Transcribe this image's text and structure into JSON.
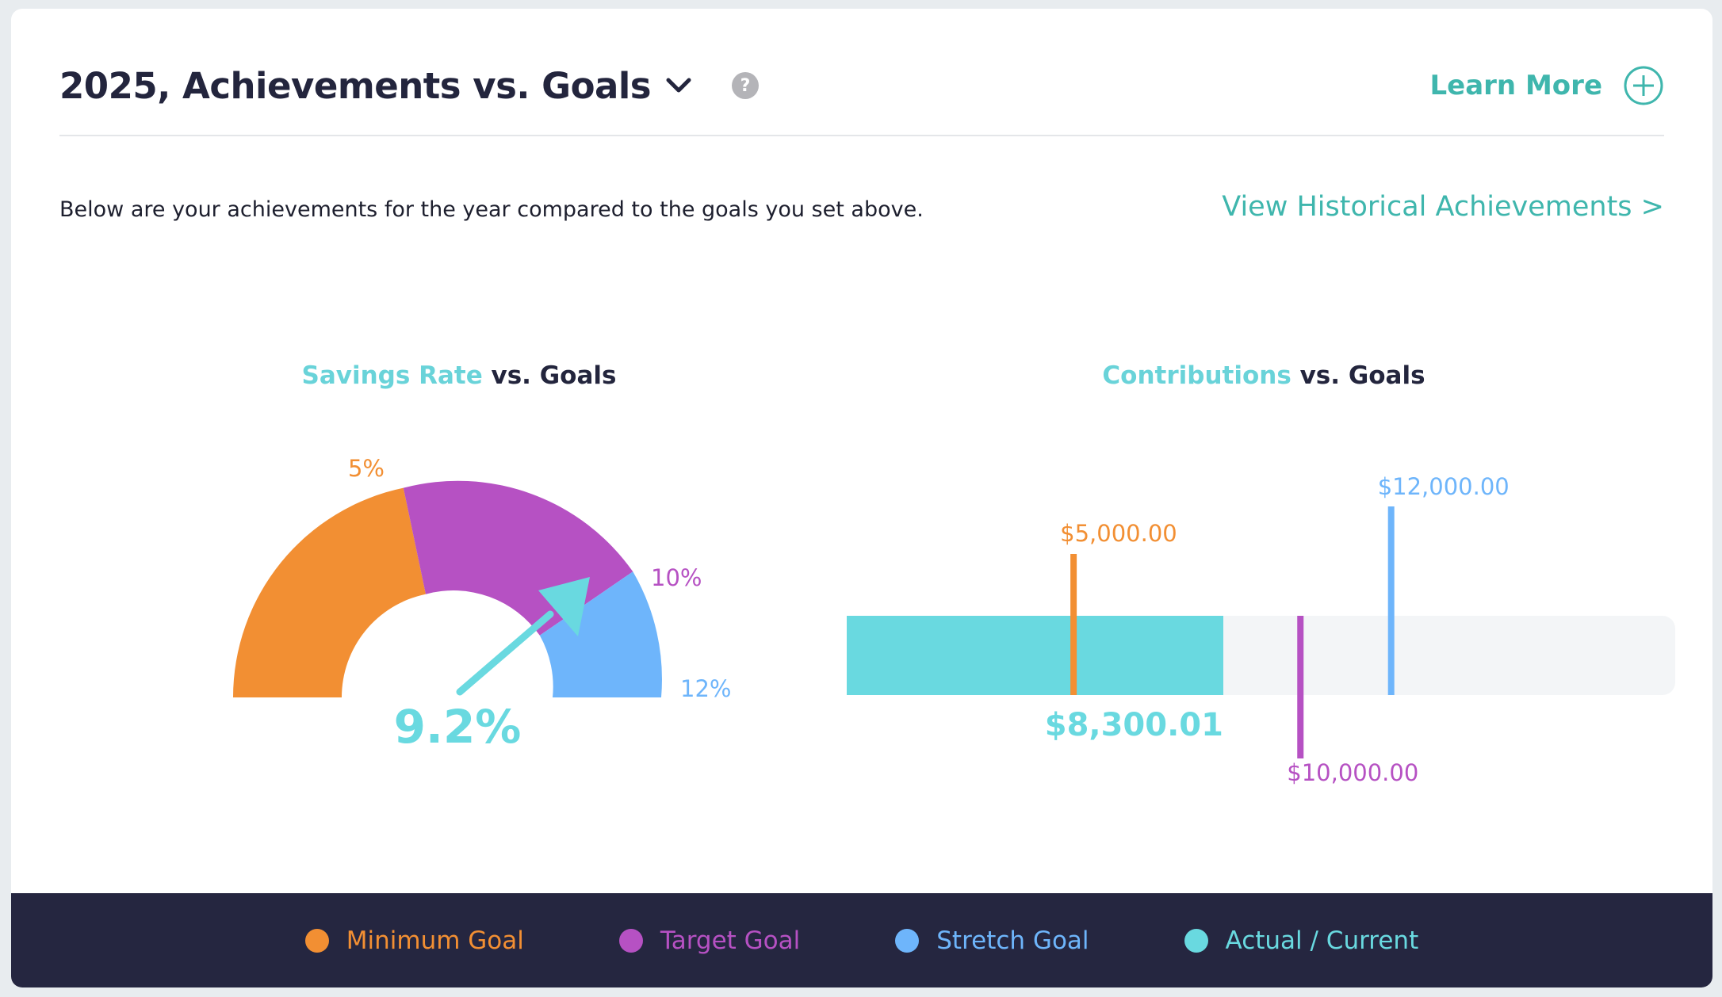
{
  "header": {
    "title": "2025, Achievements vs. Goals",
    "help_icon": "?",
    "learn_more": "Learn More"
  },
  "intro": {
    "description": "Below are your achievements for the year compared to the goals you set above.",
    "history_link": "View Historical Achievements >"
  },
  "savings_chart": {
    "title_highlight": "Savings Rate",
    "title_rest": " vs. Goals",
    "current_label": "9.2%",
    "goal_labels": {
      "minimum": "5%",
      "target": "10%",
      "stretch": "12%"
    }
  },
  "contrib_chart": {
    "title_highlight": "Contributions",
    "title_rest": " vs. Goals",
    "current_label": "$8,300.01",
    "goal_labels": {
      "minimum": "$5,000.00",
      "target": "$10,000.00",
      "stretch": "$12,000.00"
    }
  },
  "legend": [
    {
      "label": "Minimum Goal",
      "color": "#f28f33"
    },
    {
      "label": "Target Goal",
      "color": "#b651c3"
    },
    {
      "label": "Stretch Goal",
      "color": "#6eb5fb"
    },
    {
      "label": "Actual / Current",
      "color": "#69d9e0"
    }
  ],
  "colors": {
    "minimum": "#f28f33",
    "target": "#b651c3",
    "stretch": "#6eb5fb",
    "actual": "#69d9e0",
    "accent": "#3fb6ad",
    "footer": "#252640"
  },
  "chart_data": [
    {
      "type": "gauge",
      "title": "Savings Rate vs. Goals",
      "unit": "%",
      "value": 9.2,
      "goals": {
        "minimum": 5,
        "target": 10,
        "stretch": 12
      }
    },
    {
      "type": "bar",
      "title": "Contributions vs. Goals",
      "unit": "$",
      "value": 8300.01,
      "goals": {
        "minimum": 5000,
        "target": 10000,
        "stretch": 12000
      }
    }
  ]
}
